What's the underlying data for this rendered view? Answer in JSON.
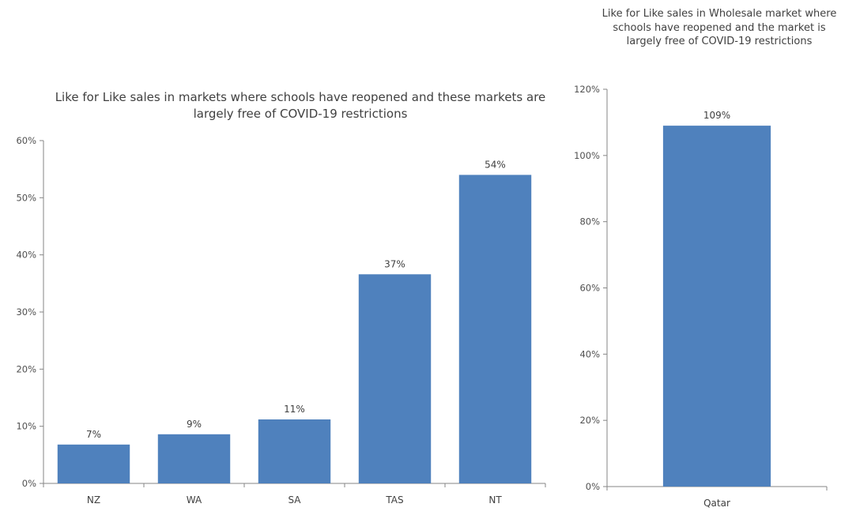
{
  "chart_data": [
    {
      "type": "bar",
      "title": "Like for Like sales in markets where schools have reopened and these markets are largely free of COVID-19 restrictions",
      "categories": [
        "NZ",
        "WA",
        "SA",
        "TAS",
        "NT"
      ],
      "values": [
        0.068,
        0.086,
        0.112,
        0.366,
        0.54
      ],
      "data_labels": [
        "7%",
        "9%",
        "11%",
        "37%",
        "54%"
      ],
      "ylim": [
        0,
        0.6
      ],
      "yticks": [
        0,
        0.1,
        0.2,
        0.3,
        0.4,
        0.5,
        0.6
      ],
      "ytick_labels": [
        "0%",
        "10%",
        "20%",
        "30%",
        "40%",
        "50%",
        "60%"
      ],
      "grid": false,
      "color": "#4F81BD"
    },
    {
      "type": "bar",
      "title": "Like for Like sales in Wholesale market where schools have reopened and the market is largely free of COVID-19 restrictions",
      "categories": [
        "Qatar"
      ],
      "values": [
        1.09
      ],
      "data_labels": [
        "109%"
      ],
      "ylim": [
        0,
        1.2
      ],
      "yticks": [
        0,
        0.2,
        0.4,
        0.6,
        0.8,
        1.0,
        1.2
      ],
      "ytick_labels": [
        "0%",
        "20%",
        "40%",
        "60%",
        "80%",
        "100%",
        "120%"
      ],
      "grid": false,
      "color": "#4F81BD"
    }
  ]
}
